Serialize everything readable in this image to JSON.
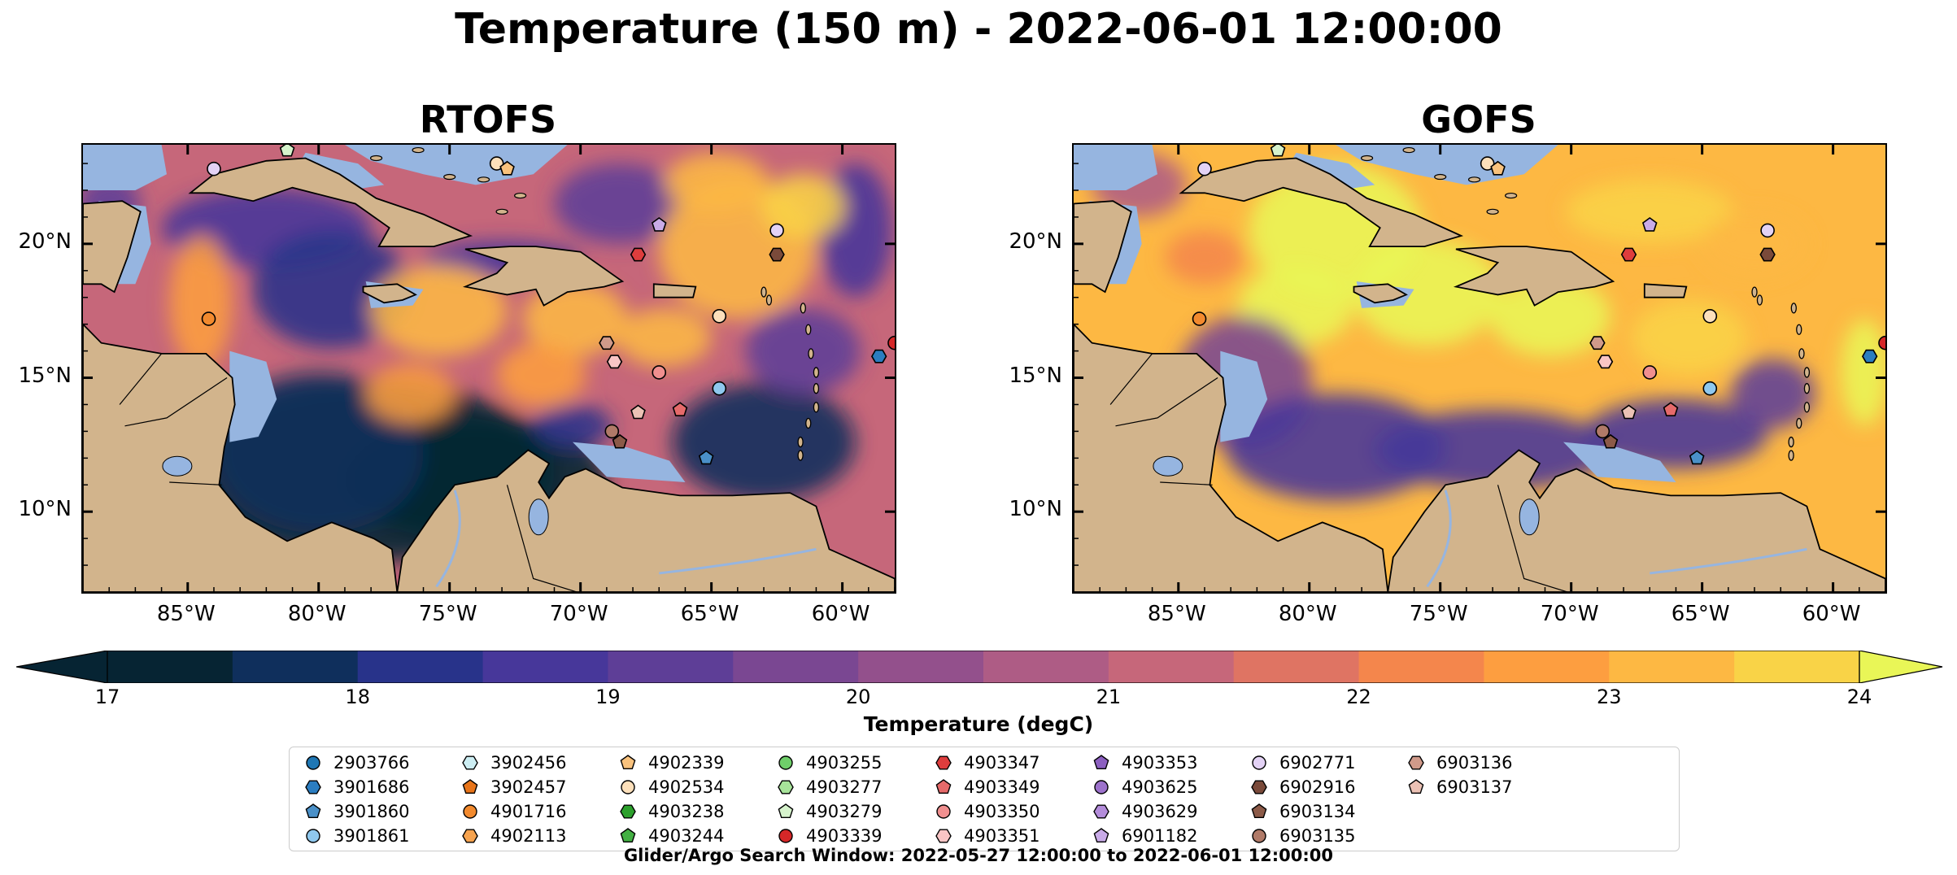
{
  "title": "Temperature (150 m) - 2022-06-01 12:00:00",
  "panels": [
    {
      "title": "RTOFS",
      "scheme": "rtofs"
    },
    {
      "title": "GOFS",
      "scheme": "gofs"
    }
  ],
  "map_extent": {
    "lon_min": -89,
    "lon_max": -58,
    "lat_min": 7,
    "lat_max": 23.7
  },
  "lat_ticks": [
    {
      "value": 20,
      "label": "20°N"
    },
    {
      "value": 15,
      "label": "15°N"
    },
    {
      "value": 10,
      "label": "10°N"
    }
  ],
  "lon_ticks": [
    {
      "value": -85,
      "label": "85°W"
    },
    {
      "value": -80,
      "label": "80°W"
    },
    {
      "value": -75,
      "label": "75°W"
    },
    {
      "value": -70,
      "label": "70°W"
    },
    {
      "value": -65,
      "label": "65°W"
    },
    {
      "value": -60,
      "label": "60°W"
    }
  ],
  "colorbar": {
    "label": "Temperature (degC)",
    "min": 17,
    "max": 24,
    "step": 0.5,
    "ticks": [
      "17",
      "18",
      "19",
      "20",
      "21",
      "22",
      "23",
      "24"
    ],
    "colors": [
      "#062433",
      "#0f2f5c",
      "#28338a",
      "#47379a",
      "#5e3e97",
      "#7a4792",
      "#93508c",
      "#ae5c85",
      "#c6677a",
      "#df7463",
      "#f4864c",
      "#fd9e40",
      "#fdb843",
      "#f9d347",
      "#e9f657"
    ]
  },
  "colors": {
    "land": "#d2b48c",
    "shelf": "#96b5e0",
    "frame": "#000000"
  },
  "legend": {
    "items": [
      {
        "id": "2903766",
        "marker": "circle",
        "color": "#1f77b4"
      },
      {
        "id": "3901686",
        "marker": "hexagon",
        "color": "#2b7dc0"
      },
      {
        "id": "3901860",
        "marker": "pentagon",
        "color": "#4a90c8"
      },
      {
        "id": "3901861",
        "marker": "circle",
        "color": "#8fc8ee"
      },
      {
        "id": "3902456",
        "marker": "hexagon",
        "color": "#cdeef3"
      },
      {
        "id": "3902457",
        "marker": "pentagon",
        "color": "#e8751a"
      },
      {
        "id": "4901716",
        "marker": "circle",
        "color": "#f28a2e"
      },
      {
        "id": "4902113",
        "marker": "hexagon",
        "color": "#f6a34f"
      },
      {
        "id": "4902339",
        "marker": "pentagon",
        "color": "#f9c27d"
      },
      {
        "id": "4902534",
        "marker": "circle",
        "color": "#fde0bb"
      },
      {
        "id": "4903238",
        "marker": "hexagon",
        "color": "#2ca02c"
      },
      {
        "id": "4903244",
        "marker": "pentagon",
        "color": "#43b043"
      },
      {
        "id": "4903255",
        "marker": "circle",
        "color": "#6fcf6a"
      },
      {
        "id": "4903277",
        "marker": "hexagon",
        "color": "#a7e39a"
      },
      {
        "id": "4903279",
        "marker": "pentagon",
        "color": "#d6f3cc"
      },
      {
        "id": "4903339",
        "marker": "circle",
        "color": "#d62728"
      },
      {
        "id": "4903347",
        "marker": "hexagon",
        "color": "#de3d3d"
      },
      {
        "id": "4903349",
        "marker": "pentagon",
        "color": "#e66a6a"
      },
      {
        "id": "4903350",
        "marker": "circle",
        "color": "#f08f8f"
      },
      {
        "id": "4903351",
        "marker": "hexagon",
        "color": "#f9c5c5"
      },
      {
        "id": "4903353",
        "marker": "pentagon",
        "color": "#8c5fc0"
      },
      {
        "id": "4903625",
        "marker": "circle",
        "color": "#9d72cc"
      },
      {
        "id": "4903629",
        "marker": "hexagon",
        "color": "#b48ddb"
      },
      {
        "id": "6901182",
        "marker": "pentagon",
        "color": "#c9abe8"
      },
      {
        "id": "6902771",
        "marker": "circle",
        "color": "#e3d2f5"
      },
      {
        "id": "6902916",
        "marker": "hexagon",
        "color": "#7a4a3a"
      },
      {
        "id": "6903134",
        "marker": "pentagon",
        "color": "#8c5a48"
      },
      {
        "id": "6903135",
        "marker": "circle",
        "color": "#b07a68"
      },
      {
        "id": "6903136",
        "marker": "hexagon",
        "color": "#d09a8a"
      },
      {
        "id": "6903137",
        "marker": "pentagon",
        "color": "#ecc2b5"
      }
    ]
  },
  "floats": [
    {
      "id": "6902771",
      "lon": -84.0,
      "lat": 22.8
    },
    {
      "id": "4903279",
      "lon": -81.2,
      "lat": 23.5
    },
    {
      "id": "4902534",
      "lon": -73.2,
      "lat": 23.0
    },
    {
      "id": "4902339",
      "lon": -72.8,
      "lat": 22.8
    },
    {
      "id": "6901182",
      "lon": -67.0,
      "lat": 20.7
    },
    {
      "id": "4903347",
      "lon": -67.8,
      "lat": 19.6
    },
    {
      "id": "6903136",
      "lon": -69.0,
      "lat": 16.3
    },
    {
      "id": "4903351",
      "lon": -68.7,
      "lat": 15.6
    },
    {
      "id": "4903350",
      "lon": -67.0,
      "lat": 15.2
    },
    {
      "id": "6903137",
      "lon": -67.8,
      "lat": 13.7
    },
    {
      "id": "4903349",
      "lon": -66.2,
      "lat": 13.8
    },
    {
      "id": "6903135",
      "lon": -68.8,
      "lat": 13.0
    },
    {
      "id": "6903134",
      "lon": -68.5,
      "lat": 12.6
    },
    {
      "id": "3901861",
      "lon": -64.7,
      "lat": 14.6
    },
    {
      "id": "3901860",
      "lon": -65.2,
      "lat": 12.0
    },
    {
      "id": "6902771",
      "lon": -62.5,
      "lat": 20.5
    },
    {
      "id": "6902916",
      "lon": -62.5,
      "lat": 19.6
    },
    {
      "id": "4902534",
      "lon": -64.7,
      "lat": 17.3
    },
    {
      "id": "4901716",
      "lon": -84.2,
      "lat": 17.2
    },
    {
      "id": "4903339",
      "lon": -58.0,
      "lat": 16.3
    },
    {
      "id": "3901686",
      "lon": -58.6,
      "lat": 15.8
    }
  ],
  "footnote": "Glider/Argo Search Window: 2022-05-27 12:00:00 to 2022-06-01 12:00:00"
}
